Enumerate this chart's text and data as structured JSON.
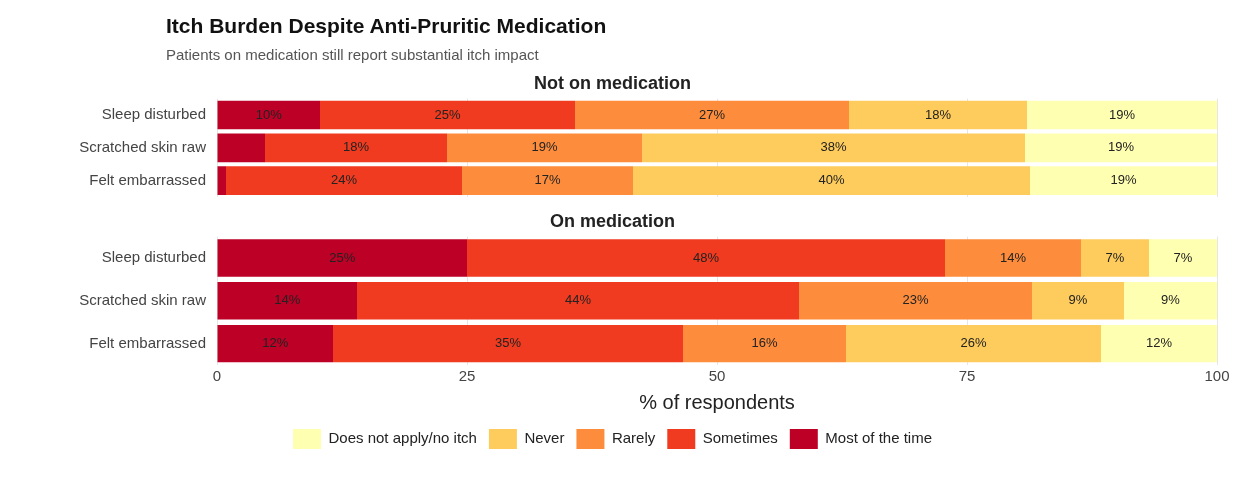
{
  "chart_data": [
    {
      "type": "bar",
      "title": "Itch Burden Despite Anti-Pruritic Medication",
      "subtitle": "Patients on medication still report substantial itch impact",
      "annotations": [
        "Not on medication"
      ],
      "orientation": "horizontal",
      "stacked": true,
      "categories": [
        "Sleep disturbed",
        "Scratched skin raw",
        "Felt embarrassed"
      ],
      "xlim": [
        0,
        100
      ],
      "xticks": [
        0,
        25,
        50,
        75,
        100
      ],
      "grid": "x",
      "tick_labels": "y",
      "series": [
        {
          "color": "#bd0026",
          "values": [
            10.3,
            4.8,
            0.9
          ],
          "value_labels": [
            "10%",
            null,
            null
          ]
        },
        {
          "color": "#f03b20",
          "values": [
            25.5,
            18.2,
            23.6
          ],
          "value_labels": [
            "25%",
            "18%",
            "24%"
          ]
        },
        {
          "color": "#fd8d3c",
          "values": [
            27.4,
            19.5,
            17.1
          ],
          "value_labels": [
            "27%",
            "19%",
            "17%"
          ]
        },
        {
          "color": "#fecc5c",
          "values": [
            17.8,
            38.3,
            39.7
          ],
          "value_labels": [
            "18%",
            "38%",
            "40%"
          ]
        },
        {
          "color": "#ffffb2",
          "values": [
            19.0,
            19.2,
            18.7
          ],
          "value_labels": [
            "19%",
            "19%",
            "19%"
          ]
        }
      ]
    },
    {
      "type": "bar",
      "title": "On medication",
      "orientation": "horizontal",
      "stacked": true,
      "categories": [
        "Sleep disturbed",
        "Scratched skin raw",
        "Felt embarrassed"
      ],
      "xlim": [
        0,
        100
      ],
      "xticks": [
        0,
        25,
        50,
        75,
        100
      ],
      "grid": "x",
      "xlabel": "% of respondents",
      "legend": "bottom",
      "series": [
        {
          "name": "Most of the time",
          "color": "#bd0026",
          "values": [
            25.0,
            14.0,
            11.6
          ],
          "value_labels": [
            "25%",
            "14%",
            "12%"
          ]
        },
        {
          "name": "Sometimes",
          "color": "#f03b20",
          "values": [
            47.8,
            44.2,
            35.0
          ],
          "value_labels": [
            "48%",
            "44%",
            "35%"
          ]
        },
        {
          "name": "Rarely",
          "color": "#fd8d3c",
          "values": [
            13.6,
            23.3,
            16.3
          ],
          "value_labels": [
            "14%",
            "23%",
            "16%"
          ]
        },
        {
          "name": "Never",
          "color": "#fecc5c",
          "values": [
            6.8,
            9.2,
            25.5
          ],
          "value_labels": [
            "7%",
            "9%",
            "26%"
          ]
        },
        {
          "name": "Does not apply/no itch",
          "color": "#ffffb2",
          "values": [
            6.8,
            9.3,
            11.6
          ],
          "value_labels": [
            "7%",
            "9%",
            "12%"
          ]
        }
      ]
    }
  ]
}
